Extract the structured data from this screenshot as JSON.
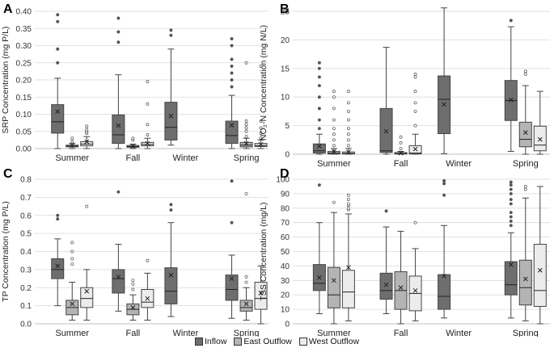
{
  "legend": {
    "items": [
      {
        "label": "Inflow",
        "color": "#6e6e6e"
      },
      {
        "label": "East Outflow",
        "color": "#b4b4b4"
      },
      {
        "label": "West Outflow",
        "color": "#ececec"
      }
    ]
  },
  "chart_data": [
    {
      "type": "box",
      "panel_letter": "A",
      "ylabel": "SRP Concentration (mg P/L)",
      "ylim": [
        0,
        0.4
      ],
      "yticks": [
        "0.00",
        "0.05",
        "0.10",
        "0.15",
        "0.20",
        "0.25",
        "0.30",
        "0.35",
        "0.40"
      ],
      "categories": [
        "Summer",
        "Fall",
        "Winter",
        "Spring"
      ],
      "series": [
        {
          "name": "Inflow",
          "boxes": [
            {
              "category": "Summer",
              "min": 0.0,
              "q1": 0.045,
              "median": 0.078,
              "q3": 0.128,
              "max": 0.205,
              "mean": 0.108,
              "outliers": [
                0.25,
                0.29,
                0.37,
                0.39
              ]
            },
            {
              "category": "Fall",
              "min": 0.0,
              "q1": 0.015,
              "median": 0.04,
              "q3": 0.098,
              "max": 0.215,
              "mean": 0.067,
              "outliers": [
                0.31,
                0.34,
                0.38
              ]
            },
            {
              "category": "Winter",
              "min": 0.01,
              "q1": 0.025,
              "median": 0.062,
              "q3": 0.135,
              "max": 0.29,
              "mean": 0.095,
              "outliers": [
                0.33,
                0.345
              ]
            },
            {
              "category": "Spring",
              "min": 0.0,
              "q1": 0.015,
              "median": 0.038,
              "q3": 0.08,
              "max": 0.155,
              "mean": 0.068,
              "outliers": [
                0.18,
                0.2,
                0.22,
                0.24,
                0.26,
                0.3,
                0.32
              ]
            }
          ]
        },
        {
          "name": "East Outflow",
          "boxes": [
            {
              "category": "Summer",
              "min": 0.0,
              "q1": 0.005,
              "median": 0.007,
              "q3": 0.01,
              "max": 0.015,
              "mean": 0.009,
              "outliers": [
                0.02,
                0.03
              ]
            },
            {
              "category": "Fall",
              "min": 0.0,
              "q1": 0.004,
              "median": 0.006,
              "q3": 0.009,
              "max": 0.013,
              "mean": 0.007,
              "outliers": [
                0.025,
                0.03
              ]
            },
            {
              "category": "Spring",
              "min": 0.0,
              "q1": 0.005,
              "median": 0.01,
              "q3": 0.018,
              "max": 0.03,
              "mean": 0.015,
              "outliers": [
                0.035,
                0.05,
                0.06,
                0.07,
                0.08,
                0.25
              ]
            }
          ]
        },
        {
          "name": "West Outflow",
          "boxes": [
            {
              "category": "Summer",
              "min": 0.0,
              "q1": 0.008,
              "median": 0.013,
              "q3": 0.02,
              "max": 0.035,
              "mean": 0.02,
              "outliers": [
                0.045,
                0.05,
                0.055,
                0.065
              ]
            },
            {
              "category": "Fall",
              "min": 0.0,
              "q1": 0.008,
              "median": 0.012,
              "q3": 0.018,
              "max": 0.03,
              "mean": 0.015,
              "outliers": [
                0.04,
                0.07,
                0.13,
                0.195
              ]
            },
            {
              "category": "Spring",
              "min": 0.0,
              "q1": 0.006,
              "median": 0.009,
              "q3": 0.015,
              "max": 0.025,
              "mean": 0.012,
              "outliers": [
                0.03,
                0.045,
                0.06,
                0.08,
                0.24
              ]
            }
          ]
        }
      ]
    },
    {
      "type": "box",
      "panel_letter": "B",
      "ylabel": "NO₃-N Concentration (mg N/L)",
      "ylim": [
        0,
        25
      ],
      "yticks": [
        "0",
        "5",
        "10",
        "15",
        "20",
        "25"
      ],
      "categories": [
        "Summer",
        "Fall",
        "Winter",
        "Spring"
      ],
      "series": [
        {
          "name": "Inflow",
          "boxes": [
            {
              "category": "Summer",
              "min": 0.0,
              "q1": 0.2,
              "median": 0.6,
              "q3": 1.8,
              "max": 3.5,
              "mean": 1.4,
              "outliers": [
                4.5,
                6,
                8,
                10,
                12,
                13.5,
                15,
                16
              ]
            },
            {
              "category": "Fall",
              "min": 0.0,
              "q1": 0.3,
              "median": 0.6,
              "q3": 8.0,
              "max": 18.7,
              "mean": 4.0,
              "outliers": []
            },
            {
              "category": "Winter",
              "min": 0.1,
              "q1": 3.6,
              "median": 9.6,
              "q3": 13.7,
              "max": 25.6,
              "mean": 8.7,
              "outliers": []
            },
            {
              "category": "Spring",
              "min": 0.5,
              "q1": 5.9,
              "median": 9.4,
              "q3": 12.9,
              "max": 22.3,
              "mean": 9.5,
              "outliers": [
                23.4
              ]
            }
          ]
        },
        {
          "name": "East Outflow",
          "boxes": [
            {
              "category": "Summer",
              "min": 0.0,
              "q1": 0.05,
              "median": 0.2,
              "q3": 0.5,
              "max": 1.0,
              "mean": 0.5,
              "outliers": [
                1.5,
                2.5,
                3.5,
                4.5,
                6,
                8,
                10,
                11
              ]
            },
            {
              "category": "Fall",
              "min": 0.0,
              "q1": 0.05,
              "median": 0.1,
              "q3": 0.3,
              "max": 0.5,
              "mean": 0.2,
              "outliers": [
                1,
                2,
                3
              ]
            },
            {
              "category": "Spring",
              "min": 0.0,
              "q1": 1.3,
              "median": 2.6,
              "q3": 5.6,
              "max": 12.0,
              "mean": 3.8,
              "outliers": [
                14,
                14.5
              ]
            }
          ]
        },
        {
          "name": "West Outflow",
          "boxes": [
            {
              "category": "Summer",
              "min": 0.0,
              "q1": 0.05,
              "median": 0.15,
              "q3": 0.4,
              "max": 1.0,
              "mean": 0.4,
              "outliers": [
                1.5,
                2.5,
                3.5,
                4.5,
                6,
                7.5,
                9,
                11
              ]
            },
            {
              "category": "Fall",
              "min": 0.0,
              "q1": 0.05,
              "median": 0.2,
              "q3": 1.5,
              "max": 3.5,
              "mean": 0.9,
              "outliers": [
                5,
                7.5,
                9,
                11,
                13.5,
                14
              ]
            },
            {
              "category": "Spring",
              "min": 0.0,
              "q1": 0.6,
              "median": 1.6,
              "q3": 4.9,
              "max": 11.0,
              "mean": 2.6,
              "outliers": []
            }
          ]
        }
      ]
    },
    {
      "type": "box",
      "panel_letter": "C",
      "ylabel": "TP Concentration (mg P/L)",
      "ylim": [
        0,
        0.8
      ],
      "yticks": [
        "0.0",
        "0.1",
        "0.2",
        "0.3",
        "0.4",
        "0.5",
        "0.6",
        "0.7",
        "0.8"
      ],
      "categories": [
        "Summer",
        "Fall",
        "Winter",
        "Spring"
      ],
      "series": [
        {
          "name": "Inflow",
          "boxes": [
            {
              "category": "Summer",
              "min": 0.1,
              "q1": 0.25,
              "median": 0.3,
              "q3": 0.36,
              "max": 0.47,
              "mean": 0.32,
              "outliers": [
                0.58,
                0.6
              ]
            },
            {
              "category": "Fall",
              "min": 0.07,
              "q1": 0.17,
              "median": 0.25,
              "q3": 0.3,
              "max": 0.44,
              "mean": 0.26,
              "outliers": [
                0.73
              ]
            },
            {
              "category": "Winter",
              "min": 0.04,
              "q1": 0.11,
              "median": 0.18,
              "q3": 0.31,
              "max": 0.56,
              "mean": 0.27,
              "outliers": [
                0.63,
                0.66
              ]
            },
            {
              "category": "Spring",
              "min": 0.03,
              "q1": 0.13,
              "median": 0.19,
              "q3": 0.27,
              "max": 0.38,
              "mean": 0.25,
              "outliers": [
                0.56,
                0.79
              ]
            }
          ]
        },
        {
          "name": "East Outflow",
          "boxes": [
            {
              "category": "Summer",
              "min": 0.02,
              "q1": 0.05,
              "median": 0.09,
              "q3": 0.13,
              "max": 0.23,
              "mean": 0.11,
              "outliers": [
                0.33,
                0.36,
                0.4,
                0.45
              ]
            },
            {
              "category": "Fall",
              "min": 0.02,
              "q1": 0.05,
              "median": 0.08,
              "q3": 0.11,
              "max": 0.16,
              "mean": 0.09,
              "outliers": [
                0.19,
                0.22,
                0.24
              ]
            },
            {
              "category": "Spring",
              "min": 0.02,
              "q1": 0.07,
              "median": 0.09,
              "q3": 0.13,
              "max": 0.2,
              "mean": 0.11,
              "outliers": [
                0.23,
                0.26,
                0.72
              ]
            }
          ]
        },
        {
          "name": "West Outflow",
          "boxes": [
            {
              "category": "Summer",
              "min": 0.02,
              "q1": 0.09,
              "median": 0.14,
              "q3": 0.2,
              "max": 0.3,
              "mean": 0.18,
              "outliers": [
                0.65
              ]
            },
            {
              "category": "Fall",
              "min": 0.02,
              "q1": 0.09,
              "median": 0.12,
              "q3": 0.19,
              "max": 0.28,
              "mean": 0.14,
              "outliers": [
                0.35
              ]
            },
            {
              "category": "Spring",
              "min": 0.0,
              "q1": 0.08,
              "median": 0.14,
              "q3": 0.23,
              "max": 0.32,
              "mean": 0.17,
              "outliers": []
            }
          ]
        }
      ]
    },
    {
      "type": "box",
      "panel_letter": "D",
      "ylabel": "TSS Concentration (mg/L)",
      "ylim": [
        0,
        100
      ],
      "yticks": [
        "0",
        "10",
        "20",
        "30",
        "40",
        "50",
        "60",
        "70",
        "80",
        "90",
        "100"
      ],
      "categories": [
        "Summer",
        "Fall",
        "Winter",
        "Spring"
      ],
      "series": [
        {
          "name": "Inflow",
          "boxes": [
            {
              "category": "Summer",
              "min": 7,
              "q1": 23,
              "median": 28,
              "q3": 41,
              "max": 70,
              "mean": 32,
              "outliers": [
                96
              ]
            },
            {
              "category": "Fall",
              "min": 7,
              "q1": 17,
              "median": 23,
              "q3": 35,
              "max": 67,
              "mean": 27,
              "outliers": [
                78
              ]
            },
            {
              "category": "Winter",
              "min": 4,
              "q1": 10,
              "median": 19,
              "q3": 34,
              "max": 68,
              "mean": 33,
              "outliers": [
                89,
                97,
                99
              ]
            },
            {
              "category": "Spring",
              "min": 4,
              "q1": 20,
              "median": 27,
              "q3": 43,
              "max": 63,
              "mean": 41,
              "outliers": [
                68,
                71,
                74,
                77,
                83,
                86,
                90,
                93,
                96,
                98
              ]
            }
          ]
        },
        {
          "name": "East Outflow",
          "boxes": [
            {
              "category": "Summer",
              "min": 0,
              "q1": 11,
              "median": 20,
              "q3": 39,
              "max": 77,
              "mean": 30,
              "outliers": [
                84
              ]
            },
            {
              "category": "Fall",
              "min": 0,
              "q1": 10,
              "median": 23,
              "q3": 36,
              "max": 64,
              "mean": 25,
              "outliers": []
            },
            {
              "category": "Spring",
              "min": 2,
              "q1": 13,
              "median": 25,
              "q3": 44,
              "max": 87,
              "mean": 31,
              "outliers": [
                93,
                95
              ]
            }
          ]
        },
        {
          "name": "West Outflow",
          "boxes": [
            {
              "category": "Summer",
              "min": 2,
              "q1": 11,
              "median": 22,
              "q3": 37,
              "max": 76,
              "mean": 39,
              "outliers": [
                79,
                80,
                82,
                83,
                86,
                89
              ]
            },
            {
              "category": "Fall",
              "min": 2,
              "q1": 9,
              "median": 21,
              "q3": 33,
              "max": 52,
              "mean": 23,
              "outliers": [
                70
              ]
            },
            {
              "category": "Spring",
              "min": 0,
              "q1": 12,
              "median": 23,
              "q3": 55,
              "max": 95,
              "mean": 37,
              "outliers": []
            }
          ]
        }
      ]
    }
  ]
}
